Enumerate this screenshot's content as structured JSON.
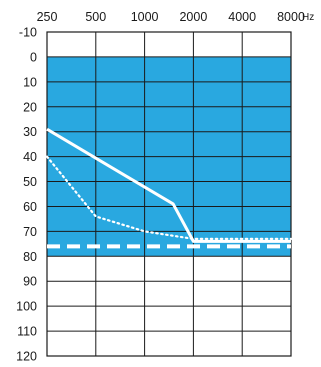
{
  "chart_data": {
    "type": "line",
    "title": "",
    "xlabel": "",
    "ylabel": "",
    "x_unit": "Hz",
    "x_scale": "log",
    "x_ticks": [
      250,
      500,
      1000,
      2000,
      4000,
      8000
    ],
    "x_tick_labels": [
      "250",
      "500",
      "1000",
      "2000",
      "4000",
      "8000"
    ],
    "xlim": [
      250,
      8000
    ],
    "y_ticks": [
      -10,
      0,
      10,
      20,
      30,
      40,
      50,
      60,
      70,
      80,
      90,
      100,
      110,
      120
    ],
    "y_tick_labels": [
      "-10",
      "0",
      "10",
      "20",
      "30",
      "40",
      "50",
      "60",
      "70",
      "80",
      "90",
      "100",
      "110",
      "120"
    ],
    "ylim": [
      -10,
      120
    ],
    "y_inverted": true,
    "grid": true,
    "shaded_region": {
      "y_from": 0,
      "y_to": 80,
      "color": "#29a8e0"
    },
    "series": [
      {
        "style": "solid",
        "color": "#ffffff",
        "x": [
          250,
          1500,
          2000,
          8000
        ],
        "y": [
          29,
          59,
          74,
          74
        ]
      },
      {
        "style": "dotted",
        "color": "#ffffff",
        "x": [
          250,
          500,
          1000,
          2000,
          8000
        ],
        "y": [
          40,
          64,
          70,
          73,
          73
        ]
      },
      {
        "style": "dashed",
        "color": "#ffffff",
        "x": [
          250,
          8000
        ],
        "y": [
          76,
          76
        ]
      }
    ]
  }
}
